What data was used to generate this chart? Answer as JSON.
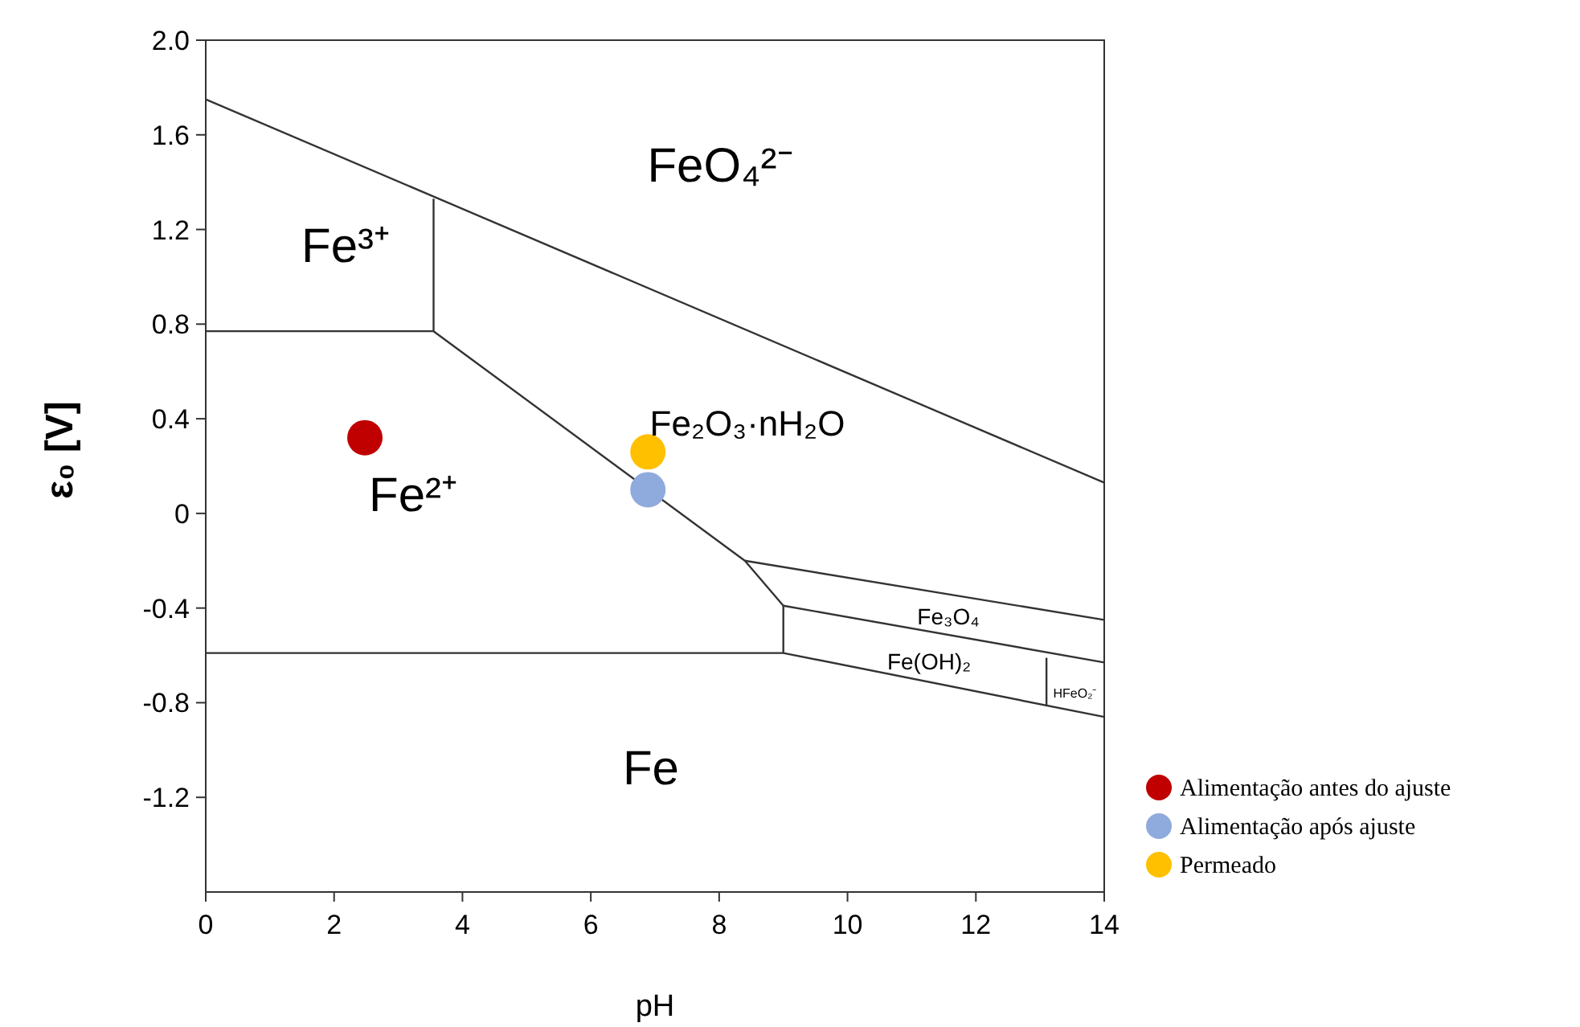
{
  "chart_data": {
    "type": "scatter",
    "xlabel": "pH",
    "ylabel": "ε₀  [V]",
    "xlim": [
      0,
      14
    ],
    "ylim": [
      -1.6,
      2.0
    ],
    "xticks": [
      0,
      2,
      4,
      6,
      8,
      10,
      12,
      14
    ],
    "yticks": [
      -1.2,
      -0.8,
      -0.4,
      0,
      0.4,
      0.8,
      1.2,
      1.6,
      {
        "value": 2,
        "label": "2.0"
      }
    ],
    "grid": false,
    "legend": "right",
    "series": [
      {
        "type": "line",
        "marker": "none",
        "color": "#333333",
        "x": [
          0,
          14
        ],
        "values": [
          1.75,
          0.13
        ]
      },
      {
        "type": "line",
        "marker": "none",
        "color": "#333333",
        "x": [
          3.55,
          3.55
        ],
        "values": [
          0.77,
          1.33
        ]
      },
      {
        "type": "line",
        "marker": "none",
        "color": "#333333",
        "x": [
          0,
          3.55,
          8.4,
          9.0
        ],
        "values": [
          0.77,
          0.77,
          -0.2,
          -0.39
        ]
      },
      {
        "type": "line",
        "marker": "none",
        "color": "#333333",
        "x": [
          8.4,
          14
        ],
        "values": [
          -0.2,
          -0.45
        ]
      },
      {
        "type": "line",
        "marker": "none",
        "color": "#333333",
        "x": [
          9.0,
          14
        ],
        "values": [
          -0.39,
          -0.63
        ]
      },
      {
        "type": "line",
        "marker": "none",
        "color": "#333333",
        "x": [
          0,
          9.0,
          9.0
        ],
        "values": [
          -0.59,
          -0.59,
          -0.39
        ]
      },
      {
        "type": "line",
        "marker": "none",
        "color": "#333333",
        "x": [
          9.0,
          14
        ],
        "values": [
          -0.59,
          -0.86
        ]
      },
      {
        "type": "line",
        "marker": "none",
        "color": "#333333",
        "x": [
          13.1,
          13.1
        ],
        "values": [
          -0.61,
          -0.81
        ]
      },
      {
        "name": "Alimentação antes do ajuste",
        "marker": "circle",
        "color": "#c00000",
        "x": [
          2.48
        ],
        "values": [
          0.32
        ]
      },
      {
        "name": "Alimentação após ajuste",
        "marker": "circle",
        "color": "#8faadc",
        "x": [
          6.89
        ],
        "values": [
          0.1
        ]
      },
      {
        "name": "Permeado",
        "marker": "circle",
        "color": "#ffc000",
        "x": [
          6.89
        ],
        "values": [
          0.26
        ]
      }
    ],
    "annotations": [
      "FeO₄²⁻",
      "Fe³⁺",
      "Fe²⁺",
      "Fe₂O₃·nH₂O",
      "Fe",
      "Fe₃O₄",
      "Fe(OH)₂",
      "HFeO₂⁻"
    ]
  }
}
